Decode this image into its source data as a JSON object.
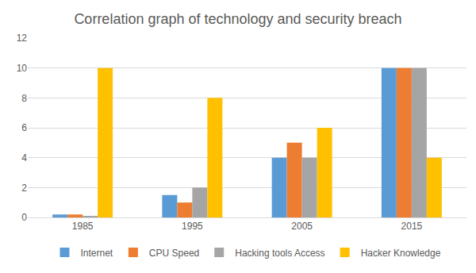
{
  "chart_data": {
    "type": "bar",
    "title": "Correlation graph of technology and security breach",
    "categories": [
      "1985",
      "1995",
      "2005",
      "2015"
    ],
    "series": [
      {
        "name": "Internet",
        "color": "#5b9bd5",
        "values": [
          0.2,
          1.5,
          4,
          10
        ]
      },
      {
        "name": "CPU Speed",
        "color": "#ed7d31",
        "values": [
          0.2,
          1,
          5,
          10
        ]
      },
      {
        "name": "Hacking tools Access",
        "color": "#a5a5a5",
        "values": [
          0.1,
          2,
          4,
          10
        ]
      },
      {
        "name": "Hacker Knowledge",
        "color": "#ffc000",
        "values": [
          10,
          8,
          6,
          4
        ]
      }
    ],
    "ylim": [
      0,
      12
    ],
    "yticks": [
      0,
      2,
      4,
      6,
      8,
      10,
      12
    ],
    "grid": true,
    "legend": "bottom"
  }
}
